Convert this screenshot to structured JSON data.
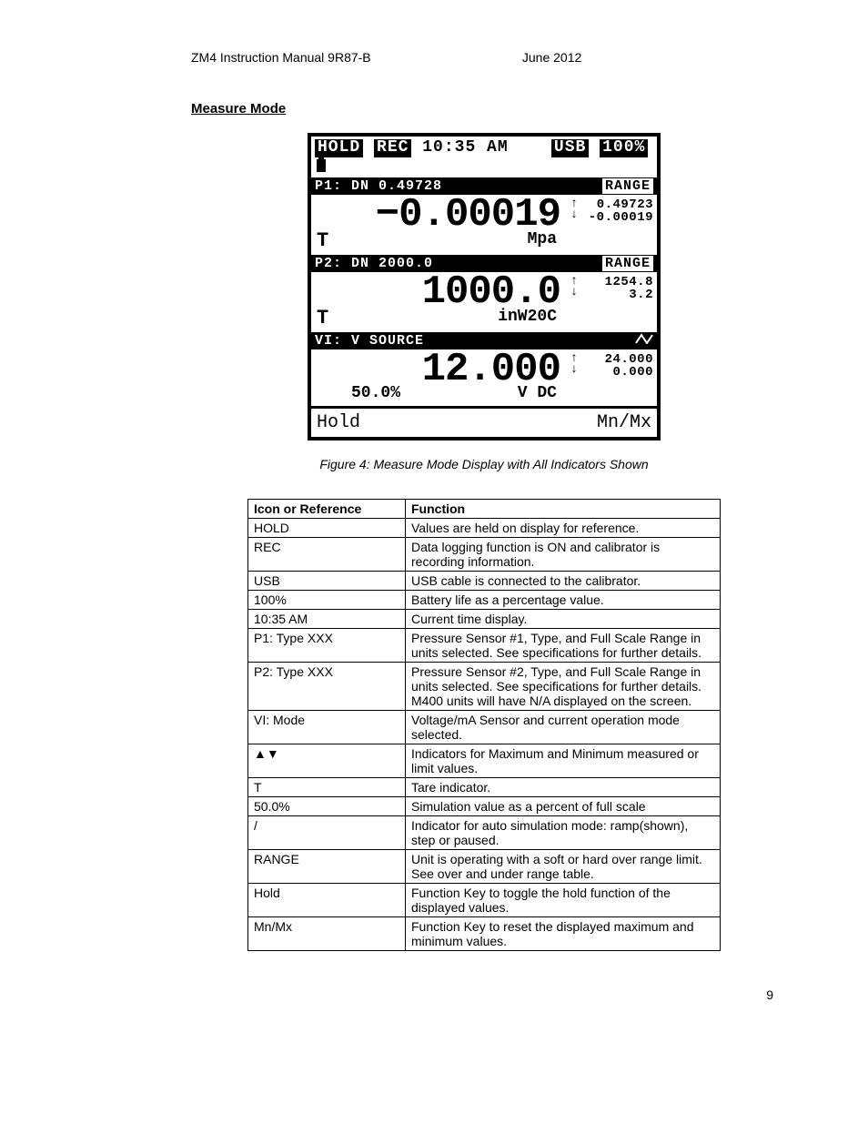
{
  "header": {
    "left": "ZM4    Instruction Manual 9R87-B",
    "right": "June 2012"
  },
  "section_title": "Measure Mode",
  "lcd": {
    "status": {
      "hold": "HOLD",
      "rec": "REC",
      "time": "10:35 AM",
      "usb": "USB",
      "batt": "100%"
    },
    "p1": {
      "header_left": "P1: DN 0.49728",
      "range_label": "RANGE",
      "value": "−0.00019",
      "unit": "Mpa",
      "tare": "T",
      "max": "0.49723",
      "min": "-0.00019"
    },
    "p2": {
      "header_left": "P2: DN 2000.0",
      "range_label": "RANGE",
      "value": "1000.0",
      "unit": "inW20C",
      "tare": "T",
      "max": "1254.8",
      "min": "3.2"
    },
    "vi": {
      "header_left": "VI: V SOURCE",
      "value": "12.000",
      "pct": "50.0%",
      "unit": "V DC",
      "max": "24.000",
      "min": "0.000"
    },
    "softkeys": {
      "left": "Hold",
      "right": "Mn/Mx"
    }
  },
  "caption": "Figure 4: Measure Mode Display with All Indicators Shown",
  "table": {
    "headers": [
      "Icon or Reference",
      "Function"
    ],
    "rows": [
      [
        "HOLD",
        "Values are held on display for reference."
      ],
      [
        "REC",
        "Data logging function is ON and calibrator is recording information."
      ],
      [
        "USB",
        "USB cable is connected to the calibrator."
      ],
      [
        "100%",
        "Battery life as a percentage value."
      ],
      [
        "10:35 AM",
        "Current time display."
      ],
      [
        "P1: Type XXX",
        "Pressure Sensor #1, Type, and Full Scale Range in units selected. See specifications for further details."
      ],
      [
        "P2: Type XXX",
        "Pressure Sensor #2, Type, and Full Scale Range in units selected. See specifications for further details. M400 units will have N/A displayed on the screen."
      ],
      [
        "VI: Mode",
        "Voltage/mA Sensor and current operation mode selected."
      ],
      [
        "▲▼",
        "Indicators for Maximum and Minimum measured or limit values."
      ],
      [
        "T",
        "Tare indicator."
      ],
      [
        "50.0%",
        "Simulation value as a percent of full scale"
      ],
      [
        "/",
        "Indicator for auto simulation mode: ramp(shown), step or paused."
      ],
      [
        "RANGE",
        "Unit is operating with a soft or hard over range limit. See over and under range table."
      ],
      [
        "Hold",
        "Function Key to toggle the hold function of the displayed values."
      ],
      [
        "Mn/Mx",
        "Function Key to reset the displayed maximum and minimum values."
      ]
    ]
  },
  "page_number": "9"
}
